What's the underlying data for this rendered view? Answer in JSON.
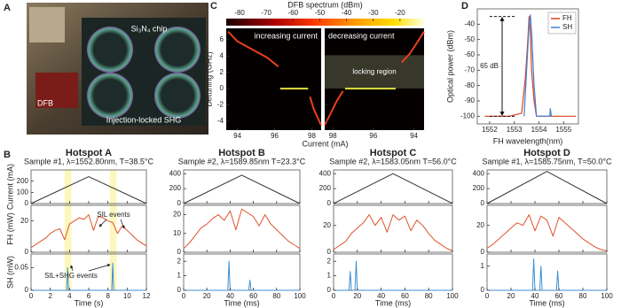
{
  "panel_labels": [
    "A",
    "B",
    "C",
    "D"
  ],
  "photo": {
    "chip_label": "Si₃N₄ chip",
    "laser_label": "DFB",
    "caption": "Injection-locked SHG"
  },
  "chart_data": [
    {
      "type": "heatmap",
      "colorbar": {
        "title": "DFB spectrum (dBm)",
        "lim": [
          -85,
          -11
        ],
        "ticks": [
          -80,
          -70,
          -60,
          -50,
          -40,
          -30,
          -20
        ]
      },
      "ylabel": "Detuning (GHz)",
      "xlabel": "Current (mA)",
      "ylim": [
        -5.1,
        7.4
      ],
      "yticks": [
        -4,
        -2,
        0,
        2,
        4,
        6
      ],
      "subplots": [
        {
          "title": "increasing current",
          "xlim": [
            93.4,
            98.5
          ],
          "xticks": [
            94,
            96,
            98
          ],
          "series": [
            {
              "color": "#e8401c",
              "x": [
                93.5,
                94,
                94.8,
                95.6,
                96.2,
                96.3,
                97.9,
                98.1,
                98.5
              ],
              "values": [
                7,
                5.8,
                4.8,
                3.8,
                2.7,
                null,
                -1,
                -2.5,
                -4.5
              ]
            },
            {
              "color": "#e0e040",
              "x": [
                96.3,
                97.8
              ],
              "values": [
                0,
                0
              ]
            }
          ]
        },
        {
          "title": "decreasing current",
          "xlim": [
            98.4,
            93.5
          ],
          "xticks": [
            98,
            96,
            94
          ],
          "region": {
            "label": "locking region",
            "ylim": [
              0,
              4.1
            ]
          },
          "series": [
            {
              "color": "#e8401c",
              "x": [
                98.4,
                98.1,
                97.8,
                97.5,
                95.0,
                94.6,
                94.2,
                93.8,
                93.5
              ],
              "values": [
                -4.5,
                -3,
                -1.5,
                -0.3,
                null,
                3.2,
                4.3,
                5.8,
                7
              ]
            },
            {
              "color": "#e0e040",
              "x": [
                97.4,
                94.9
              ],
              "values": [
                0,
                0
              ]
            }
          ]
        }
      ]
    },
    {
      "type": "line",
      "ylabel": "Optical power (dBm)",
      "xlabel": "FH wavelength(nm)",
      "xlim": [
        1551.5,
        1555.6
      ],
      "ylim": [
        -105,
        -30
      ],
      "xticks": [
        1552,
        1553,
        1554,
        1555
      ],
      "yticks": [
        -100,
        -90,
        -80,
        -70,
        -60,
        -50,
        -40
      ],
      "legend": "upper right",
      "series": [
        {
          "name": "FH",
          "color": "#d9401f",
          "x": [
            1551.8,
            1552.8,
            1553.3,
            1553.45,
            1553.55,
            1553.6,
            1553.65,
            1553.7,
            1553.8,
            1553.9,
            1554.2,
            1555.5
          ],
          "values": [
            -100,
            -100,
            -98,
            -75,
            -50,
            -35,
            -45,
            -70,
            -90,
            -100,
            -100,
            -100
          ]
        },
        {
          "name": "SH",
          "color": "#3f7fd0",
          "x": [
            1553.4,
            1553.5,
            1553.6,
            1553.65,
            1553.7,
            1553.8,
            1553.9,
            1554.44,
            1554.46,
            1554.5
          ],
          "values": [
            -100,
            -70,
            -40,
            -34,
            -45,
            -80,
            -100,
            -100,
            -95,
            -100
          ]
        }
      ],
      "annotation": {
        "text": "65 dB",
        "range": [
          -100,
          -35
        ]
      }
    },
    {
      "type": "stacked-line",
      "title": "Hotspot A",
      "subtitle": "Sample #1, λ=1552.80nm, T=38.5°C",
      "xlabel": "Time (s)",
      "xlim": [
        0,
        12
      ],
      "xticks": [
        0,
        2,
        4,
        6,
        8,
        10,
        12
      ],
      "highlights": [
        [
          3.5,
          4.2
        ],
        [
          8.2,
          8.9
        ]
      ],
      "annotations": [
        "SIL events",
        "SIL+SHG events"
      ],
      "panels": [
        {
          "ylabel": "Current (mA)",
          "ylim": [
            0,
            300
          ],
          "yticks": [
            0,
            100,
            200
          ],
          "color": "#333333",
          "x": [
            0,
            6,
            12
          ],
          "values": [
            0,
            240,
            0
          ]
        },
        {
          "ylabel": "FH (mW)",
          "ylim": [
            0,
            30
          ],
          "yticks": [
            0,
            20
          ],
          "color": "#e0532b",
          "x": [
            0,
            0.5,
            1,
            1.5,
            2,
            2.5,
            3,
            3.5,
            4,
            4.5,
            5,
            5.5,
            6,
            6.5,
            7,
            7.5,
            8,
            8.5,
            9,
            9.5,
            10,
            10.5,
            11,
            11.5,
            12
          ],
          "values": [
            3,
            5,
            7,
            9,
            12,
            14,
            15,
            8,
            18,
            20,
            22,
            21,
            24,
            14,
            23,
            22,
            20,
            19,
            12,
            17,
            14,
            11,
            8,
            6,
            4
          ]
        },
        {
          "ylabel": "SH (mW)",
          "ylim": [
            0,
            0.08
          ],
          "yticks": [
            0,
            0.05
          ],
          "color": "#3b8fd6",
          "x": [
            0,
            3.7,
            3.8,
            3.9,
            8.4,
            8.5,
            8.6,
            12
          ],
          "values": [
            0,
            0,
            0.05,
            0,
            0,
            0.06,
            0,
            0
          ]
        }
      ]
    },
    {
      "type": "stacked-line",
      "title": "Hotspot B",
      "subtitle": "Sample #2, λ=1589.85nm T=23.3°C",
      "xlabel": "Time (ms)",
      "xlim": [
        0,
        100
      ],
      "xticks": [
        0,
        20,
        40,
        60,
        80,
        100
      ],
      "panels": [
        {
          "ylim": [
            0,
            450
          ],
          "yticks": [
            0,
            200,
            400
          ],
          "color": "#333333",
          "x": [
            0,
            50,
            100
          ],
          "values": [
            0,
            380,
            0
          ]
        },
        {
          "ylim": [
            0,
            25
          ],
          "yticks": [
            0,
            10,
            20
          ],
          "color": "#e0532b",
          "x": [
            0,
            5,
            10,
            15,
            20,
            25,
            30,
            35,
            40,
            45,
            50,
            55,
            60,
            65,
            70,
            75,
            80,
            85,
            90,
            95,
            100
          ],
          "values": [
            2,
            5,
            9,
            13,
            15,
            18,
            20,
            17,
            22,
            12,
            23,
            21,
            19,
            14,
            20,
            15,
            12,
            9,
            6,
            4,
            2
          ]
        },
        {
          "ylim": [
            0,
            2.5
          ],
          "yticks": [
            0,
            1,
            2
          ],
          "color": "#3b8fd6",
          "x": [
            0,
            38,
            39,
            40,
            56,
            57,
            58,
            100
          ],
          "values": [
            0,
            0,
            2,
            0,
            0,
            0.7,
            0,
            0
          ]
        }
      ]
    },
    {
      "type": "stacked-line",
      "title": "Hotspot C",
      "subtitle": "Sample #2, λ=1583.05nm T=56.0°C",
      "xlabel": "Time (ms)",
      "xlim": [
        0,
        100
      ],
      "xticks": [
        0,
        20,
        40,
        60,
        80,
        100
      ],
      "panels": [
        {
          "ylim": [
            0,
            450
          ],
          "yticks": [
            0,
            200,
            400
          ],
          "color": "#333333",
          "x": [
            0,
            50,
            100
          ],
          "values": [
            0,
            400,
            0
          ]
        },
        {
          "ylim": [
            0,
            35
          ],
          "yticks": [
            0,
            20
          ],
          "color": "#e0532b",
          "x": [
            0,
            5,
            10,
            15,
            20,
            25,
            30,
            35,
            40,
            45,
            50,
            55,
            60,
            65,
            70,
            75,
            80,
            85,
            90,
            95,
            100
          ],
          "values": [
            2,
            5,
            8,
            14,
            18,
            22,
            28,
            20,
            26,
            15,
            28,
            24,
            27,
            16,
            24,
            20,
            14,
            9,
            6,
            3,
            1
          ]
        },
        {
          "ylim": [
            0,
            2.5
          ],
          "yticks": [
            0,
            1,
            2
          ],
          "color": "#3b8fd6",
          "x": [
            0,
            13,
            14,
            15,
            18,
            19,
            20,
            100
          ],
          "values": [
            0,
            0,
            1.3,
            0,
            0,
            2,
            0,
            0
          ]
        }
      ]
    },
    {
      "type": "stacked-line",
      "title": "Hotspot D",
      "subtitle": "Sample #1, λ=1585.75nm, T=50.0°C",
      "xlabel": "Time (ms)",
      "xlim": [
        0,
        100
      ],
      "xticks": [
        0,
        20,
        40,
        60,
        80,
        100
      ],
      "panels": [
        {
          "ylim": [
            0,
            450
          ],
          "yticks": [
            0,
            200,
            400
          ],
          "color": "#333333",
          "x": [
            0,
            50,
            100
          ],
          "values": [
            0,
            430,
            0
          ]
        },
        {
          "ylim": [
            0,
            35
          ],
          "yticks": [
            0,
            20
          ],
          "color": "#e0532b",
          "x": [
            0,
            5,
            10,
            15,
            20,
            25,
            30,
            35,
            40,
            45,
            50,
            55,
            60,
            65,
            70,
            75,
            80,
            85,
            90,
            95,
            100
          ],
          "values": [
            3,
            6,
            10,
            14,
            18,
            22,
            20,
            28,
            16,
            27,
            24,
            12,
            26,
            22,
            18,
            14,
            10,
            7,
            4,
            2,
            1
          ]
        },
        {
          "ylim": [
            0,
            1.5
          ],
          "yticks": [
            0,
            1
          ],
          "color": "#3b8fd6",
          "x": [
            0,
            38,
            39,
            40,
            44,
            45,
            46,
            58,
            59,
            60,
            100
          ],
          "values": [
            0,
            0,
            1.3,
            0,
            0,
            1,
            0,
            0,
            0.8,
            0,
            0
          ]
        }
      ]
    }
  ]
}
